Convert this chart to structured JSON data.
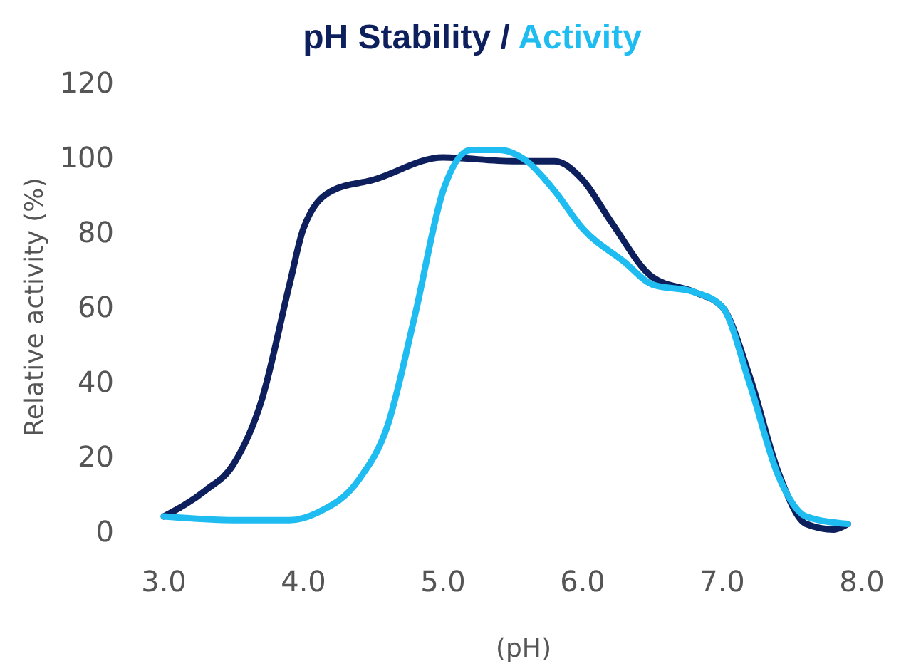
{
  "chart_data": {
    "type": "line",
    "xlabel": "(pH)",
    "ylabel": "Relative activity (%)",
    "legend": "top",
    "marker": "none",
    "line_style": "solid",
    "grid": false,
    "xlim": [
      3,
      8
    ],
    "annotations": [
      "/"
    ],
    "xticks": [
      {
        "value": 3,
        "label": "3.0"
      },
      {
        "value": 4,
        "label": "4.0"
      },
      {
        "value": 5,
        "label": "5.0"
      },
      {
        "value": 6,
        "label": "6.0"
      },
      {
        "value": 7,
        "label": "7.0"
      },
      {
        "value": 8,
        "label": "8.0"
      }
    ],
    "ylim": [
      0,
      120
    ],
    "yticks": [
      0,
      20,
      40,
      60,
      80,
      100,
      120
    ],
    "series": [
      {
        "name": "pH Stability",
        "color": "#0d1f5c",
        "x": [
          3.0,
          3.3,
          3.5,
          3.7,
          3.9,
          4.0,
          4.2,
          4.5,
          5.0,
          5.5,
          5.8,
          6.0,
          6.2,
          6.5,
          6.8,
          7.0,
          7.2,
          7.4,
          7.6,
          7.8,
          7.9
        ],
        "values": [
          4,
          11,
          18,
          35,
          66,
          81,
          91,
          94,
          100,
          99,
          99,
          94,
          83,
          68,
          64,
          60,
          41,
          16,
          2,
          0.5,
          2
        ]
      },
      {
        "name": "Activity",
        "color": "#1ebcf0",
        "x": [
          3.0,
          3.5,
          3.9,
          4.1,
          4.4,
          4.6,
          4.8,
          5.0,
          5.2,
          5.4,
          5.6,
          5.8,
          6.0,
          6.3,
          6.5,
          6.8,
          7.0,
          7.2,
          7.4,
          7.6,
          7.9
        ],
        "values": [
          4,
          3,
          3,
          5,
          14,
          28,
          58,
          91,
          102,
          102,
          99,
          91,
          81,
          72,
          66,
          64,
          60,
          39,
          15,
          4,
          2
        ]
      }
    ]
  }
}
